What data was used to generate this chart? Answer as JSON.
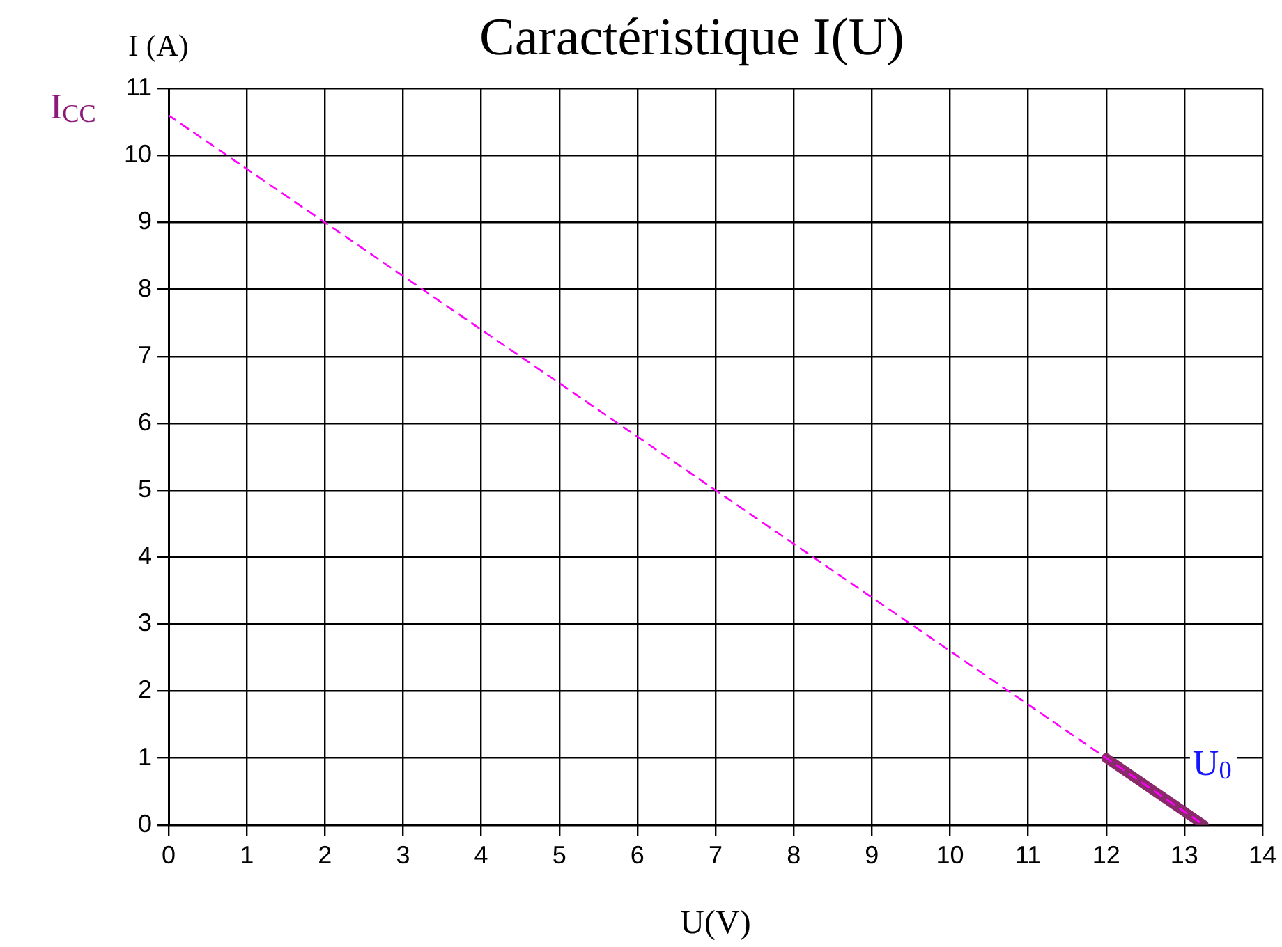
{
  "chart_data": {
    "type": "line",
    "title": "Caractéristique I(U)",
    "xlabel": "U(V)",
    "ylabel": "I (A)",
    "series": [
      {
        "color": "#ff00ff",
        "line_style": "dashed",
        "x": [
          0,
          13.25
        ],
        "values": [
          10.6,
          0
        ]
      },
      {
        "color": "#8b2a6b",
        "line_style": "solid",
        "x": [
          12,
          13.25
        ],
        "values": [
          1,
          0
        ]
      }
    ],
    "xlim": [
      0,
      14
    ],
    "xticks": [
      0,
      1,
      2,
      3,
      4,
      5,
      6,
      7,
      8,
      9,
      10,
      11,
      12,
      13,
      14
    ],
    "ylim": [
      0,
      11
    ],
    "yticks": [
      0,
      1,
      2,
      3,
      4,
      5,
      6,
      7,
      8,
      9,
      10,
      11
    ],
    "grid": true,
    "annotations": [
      {
        "text": "I$_{CC}$",
        "x": 0,
        "y": 10.6
      },
      {
        "text": "U$_{0}$",
        "x": 13.25,
        "y": 0
      }
    ]
  }
}
